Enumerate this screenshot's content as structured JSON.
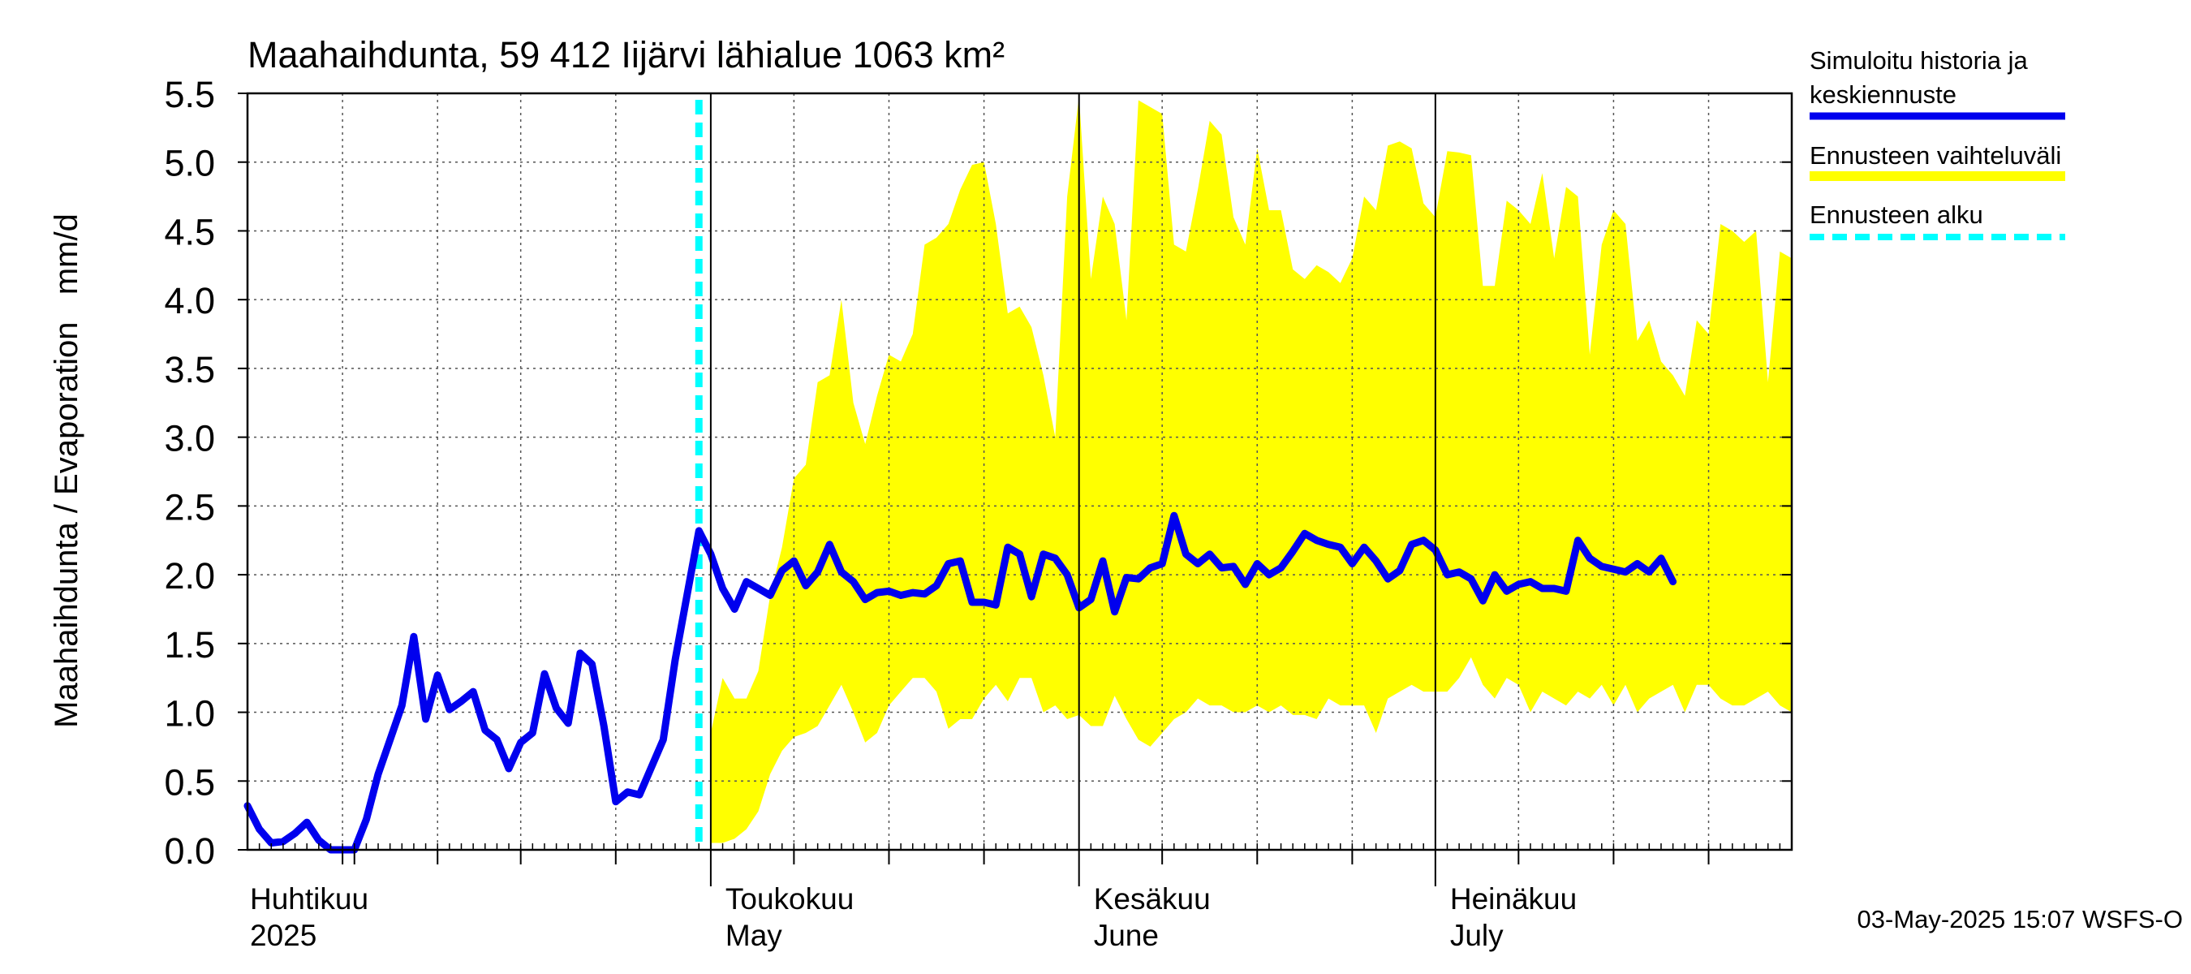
{
  "chart_data": {
    "type": "area",
    "title": "Maahaihdunta, 59 412 Iijärvi lähialue 1063 km²",
    "ylabel": "Maahaihdunta / Evaporation   mm/d",
    "ylim": [
      0,
      5.5
    ],
    "yticks": [
      "0.0",
      "0.5",
      "1.0",
      "1.5",
      "2.0",
      "2.5",
      "3.0",
      "3.5",
      "4.0",
      "4.5",
      "5.0",
      "5.5"
    ],
    "x_range": [
      "2025-03-23",
      "2025-07-31"
    ],
    "month_labels": [
      {
        "fi": "Huhtikuu",
        "en": "2025",
        "date": "2025-04-01"
      },
      {
        "fi": "Toukokuu",
        "en": "May",
        "date": "2025-05-01"
      },
      {
        "fi": "Kesäkuu",
        "en": "June",
        "date": "2025-06-01"
      },
      {
        "fi": "Heinäkuu",
        "en": "July",
        "date": "2025-07-01"
      }
    ],
    "grid": true,
    "legend_position": "right",
    "forecast_start": "2025-04-30",
    "series": [
      {
        "name": "Simuloitu historia ja keskiennuste",
        "color": "#0000ee",
        "start": "2025-03-23",
        "values": [
          0.32,
          0.15,
          0.05,
          0.06,
          0.12,
          0.2,
          0.07,
          0.0,
          0.0,
          0.0,
          0.22,
          0.55,
          0.8,
          1.05,
          1.55,
          0.95,
          1.27,
          1.02,
          1.08,
          1.15,
          0.87,
          0.8,
          0.59,
          0.78,
          0.85,
          1.28,
          1.03,
          0.92,
          1.43,
          1.35,
          0.9,
          0.35,
          0.42,
          0.4,
          0.6,
          0.8,
          1.38,
          1.85,
          2.32,
          2.15,
          1.9,
          1.75,
          1.95,
          1.9,
          1.85,
          2.03,
          2.1,
          1.92,
          2.02,
          2.22,
          2.02,
          1.95,
          1.82,
          1.87,
          1.88,
          1.85,
          1.87,
          1.86,
          1.92,
          2.08,
          2.1,
          1.8,
          1.8,
          1.78,
          2.2,
          2.15,
          1.84,
          2.15,
          2.12,
          2.0,
          1.76,
          1.82,
          2.1,
          1.73,
          1.98,
          1.97,
          2.05,
          2.08,
          2.43,
          2.15,
          2.08,
          2.15,
          2.05,
          2.06,
          1.93,
          2.08,
          2.0,
          2.05,
          2.17,
          2.3,
          2.25,
          2.22,
          2.2,
          2.08,
          2.2,
          2.1,
          1.97,
          2.03,
          2.22,
          2.25,
          2.18,
          2.0,
          2.02,
          1.97,
          1.81,
          2.0,
          1.88,
          1.93,
          1.95,
          1.9,
          1.9,
          1.88,
          2.25,
          2.12,
          2.06,
          2.04,
          2.02,
          2.08,
          2.02,
          2.12,
          1.95
        ]
      }
    ],
    "band": {
      "name": "Ennusteen vaihteluväli",
      "color": "#ffff00",
      "start": "2025-05-01",
      "upper": [
        0.85,
        1.25,
        1.1,
        1.1,
        1.3,
        1.85,
        2.2,
        2.7,
        2.8,
        3.4,
        3.45,
        4.0,
        3.25,
        2.95,
        3.3,
        3.6,
        3.55,
        3.75,
        4.4,
        4.45,
        4.55,
        4.8,
        4.98,
        5.0,
        4.55,
        3.9,
        3.95,
        3.8,
        3.45,
        3.0,
        4.75,
        5.48,
        4.15,
        4.75,
        4.55,
        3.85,
        5.45,
        5.4,
        5.35,
        4.4,
        4.35,
        4.8,
        5.3,
        5.2,
        4.6,
        4.4,
        5.1,
        4.65,
        4.65,
        4.22,
        4.15,
        4.25,
        4.2,
        4.12,
        4.3,
        4.75,
        4.65,
        5.12,
        5.15,
        5.1,
        4.7,
        4.6,
        5.08,
        5.07,
        5.05,
        4.1,
        4.1,
        4.72,
        4.65,
        4.55,
        4.92,
        4.3,
        4.82,
        4.75,
        3.6,
        4.4,
        4.65,
        4.55,
        3.7,
        3.85,
        3.55,
        3.45,
        3.3,
        3.85,
        3.75,
        4.55,
        4.5,
        4.42,
        4.5,
        3.4,
        4.35,
        4.3
      ],
      "lower": [
        0.05,
        0.05,
        0.08,
        0.15,
        0.28,
        0.55,
        0.72,
        0.82,
        0.85,
        0.9,
        1.05,
        1.2,
        1.0,
        0.78,
        0.85,
        1.05,
        1.15,
        1.25,
        1.25,
        1.15,
        0.88,
        0.95,
        0.95,
        1.1,
        1.2,
        1.08,
        1.25,
        1.25,
        1.0,
        1.05,
        0.95,
        0.98,
        0.9,
        0.9,
        1.12,
        0.95,
        0.8,
        0.75,
        0.85,
        0.95,
        1.0,
        1.1,
        1.05,
        1.05,
        1.0,
        1.0,
        1.05,
        1.0,
        1.05,
        0.98,
        0.98,
        0.95,
        1.1,
        1.05,
        1.05,
        1.05,
        0.85,
        1.1,
        1.15,
        1.2,
        1.15,
        1.15,
        1.15,
        1.25,
        1.4,
        1.2,
        1.1,
        1.25,
        1.2,
        1.0,
        1.15,
        1.1,
        1.05,
        1.15,
        1.1,
        1.2,
        1.05,
        1.2,
        1.0,
        1.1,
        1.15,
        1.2,
        1.0,
        1.2,
        1.2,
        1.1,
        1.05,
        1.05,
        1.1,
        1.15,
        1.05,
        1.0
      ]
    },
    "forecast_line": {
      "name": "Ennusteen alku",
      "color": "#00ffff"
    }
  },
  "legend": {
    "items": [
      {
        "line1": "Simuloitu historia ja",
        "line2": "keskiennuste",
        "color": "#0000ee"
      },
      {
        "line1": "Ennusteen vaihteluväli",
        "line2": "",
        "color": "#ffff00"
      },
      {
        "line1": "Ennusteen alku",
        "line2": "",
        "color": "#00ffff"
      }
    ]
  },
  "footer": "03-May-2025 15:07 WSFS-O"
}
